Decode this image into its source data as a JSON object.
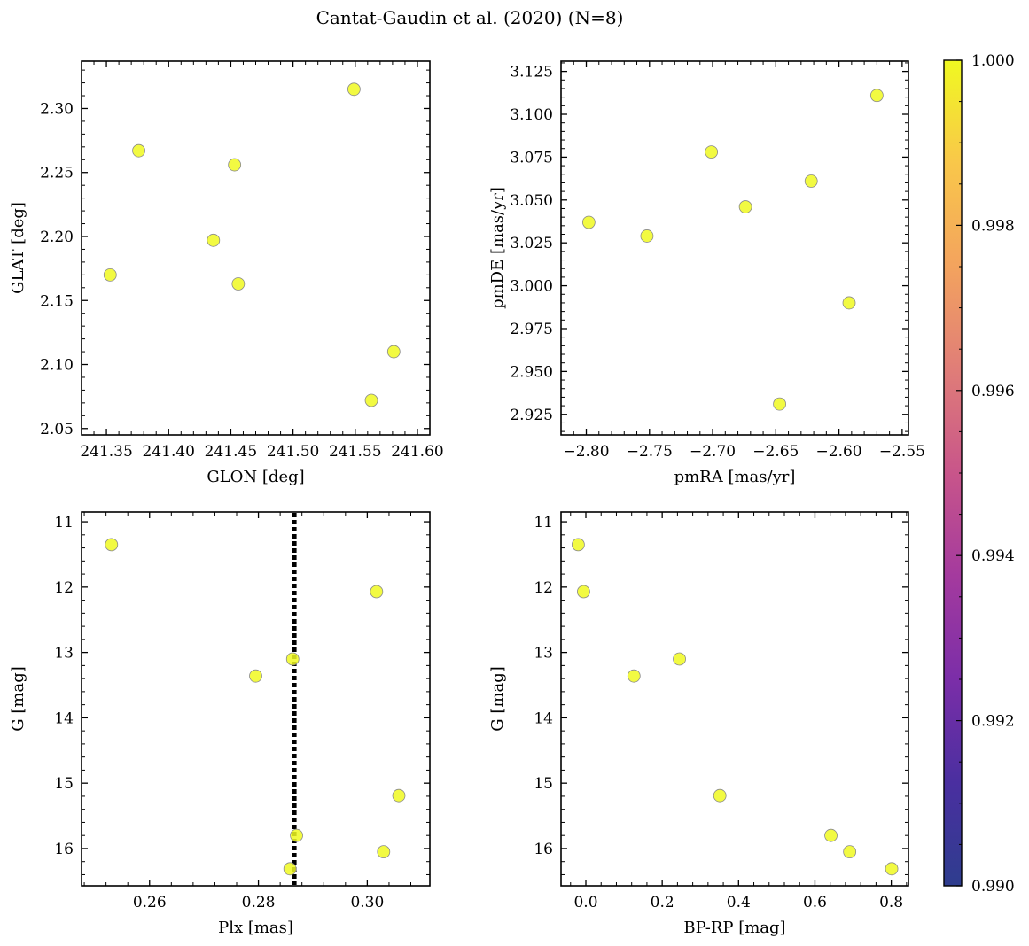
{
  "figure_title": "Cantat-Gaudin et al. (2020) (N=8)",
  "colors": {
    "marker_fill": "#f0f921",
    "marker_edge": "#8a8a8a",
    "vline": "#000000"
  },
  "chart_data": [
    {
      "type": "scatter",
      "name": "GLON vs GLAT",
      "xlabel": "GLON [deg]",
      "ylabel": "GLAT [deg]",
      "xlim": [
        241.33,
        241.61
      ],
      "ylim": [
        2.045,
        2.337
      ],
      "xticks": [
        241.35,
        241.4,
        241.45,
        241.5,
        241.55,
        241.6
      ],
      "xtick_labels": [
        "241.35",
        "241.40",
        "241.45",
        "241.50",
        "241.55",
        "241.60"
      ],
      "yticks": [
        2.05,
        2.1,
        2.15,
        2.2,
        2.25,
        2.3
      ],
      "ytick_labels": [
        "2.05",
        "2.10",
        "2.15",
        "2.20",
        "2.25",
        "2.30"
      ],
      "y_inverted": false,
      "x": [
        241.353,
        241.376,
        241.436,
        241.453,
        241.456,
        241.549,
        241.563,
        241.581
      ],
      "y": [
        2.17,
        2.267,
        2.197,
        2.256,
        2.163,
        2.315,
        2.072,
        2.11
      ]
    },
    {
      "type": "scatter",
      "name": "pmRA vs pmDE",
      "xlabel": "pmRA [mas/yr]",
      "ylabel": "pmDE [mas/yr]",
      "xlim": [
        -2.82,
        -2.545
      ],
      "ylim": [
        2.913,
        3.131
      ],
      "xticks": [
        -2.8,
        -2.75,
        -2.7,
        -2.65,
        -2.6,
        -2.55
      ],
      "xtick_labels": [
        "−2.80",
        "−2.75",
        "−2.70",
        "−2.65",
        "−2.60",
        "−2.55"
      ],
      "yticks": [
        2.925,
        2.95,
        2.975,
        3.0,
        3.025,
        3.05,
        3.075,
        3.1,
        3.125
      ],
      "ytick_labels": [
        "2.925",
        "2.950",
        "2.975",
        "3.000",
        "3.025",
        "3.050",
        "3.075",
        "3.100",
        "3.125"
      ],
      "y_inverted": false,
      "x": [
        -2.798,
        -2.752,
        -2.701,
        -2.674,
        -2.647,
        -2.622,
        -2.592,
        -2.57
      ],
      "y": [
        3.037,
        3.029,
        3.078,
        3.046,
        2.931,
        3.061,
        2.99,
        3.111
      ]
    },
    {
      "type": "scatter",
      "name": "Plx vs G",
      "xlabel": "Plx [mas]",
      "ylabel": "G [mag]",
      "xlim": [
        0.2475,
        0.3115
      ],
      "ylim": [
        10.85,
        16.57
      ],
      "xticks": [
        0.26,
        0.28,
        0.3
      ],
      "xtick_labels": [
        "0.26",
        "0.28",
        "0.30"
      ],
      "yticks": [
        11,
        12,
        13,
        14,
        15,
        16
      ],
      "ytick_labels": [
        "11",
        "12",
        "13",
        "14",
        "15",
        "16"
      ],
      "y_inverted": true,
      "vline": 0.2866,
      "x": [
        0.253,
        0.3017,
        0.2863,
        0.2795,
        0.3058,
        0.287,
        0.303,
        0.2858
      ],
      "y": [
        11.35,
        12.07,
        13.1,
        13.36,
        15.19,
        15.8,
        16.05,
        16.31
      ]
    },
    {
      "type": "scatter",
      "name": "BP-RP vs G",
      "xlabel": "BP-RP [mag]",
      "ylabel": "G [mag]",
      "xlim": [
        -0.065,
        0.845
      ],
      "ylim": [
        10.85,
        16.57
      ],
      "xticks": [
        0.0,
        0.2,
        0.4,
        0.6,
        0.8
      ],
      "xtick_labels": [
        "0.0",
        "0.2",
        "0.4",
        "0.6",
        "0.8"
      ],
      "yticks": [
        11,
        12,
        13,
        14,
        15,
        16
      ],
      "ytick_labels": [
        "11",
        "12",
        "13",
        "14",
        "15",
        "16"
      ],
      "y_inverted": true,
      "x": [
        -0.02,
        -0.006,
        0.245,
        0.126,
        0.351,
        0.642,
        0.691,
        0.801
      ],
      "y": [
        11.35,
        12.07,
        13.1,
        13.36,
        15.19,
        15.8,
        16.05,
        16.31
      ]
    }
  ],
  "colorbar": {
    "colormap": "plasma",
    "range": [
      0.99,
      1.0
    ],
    "ticks": [
      0.99,
      0.992,
      0.994,
      0.996,
      0.998,
      1.0
    ],
    "tick_labels": [
      "0.990",
      "0.992",
      "0.994",
      "0.996",
      "0.998",
      "1.000"
    ],
    "stops": [
      "#2e3d8e",
      "#4a2fa0",
      "#7b2ea8",
      "#a43a9e",
      "#c8558a",
      "#e07d78",
      "#f3a35e",
      "#f9c74a",
      "#f0f921"
    ]
  }
}
